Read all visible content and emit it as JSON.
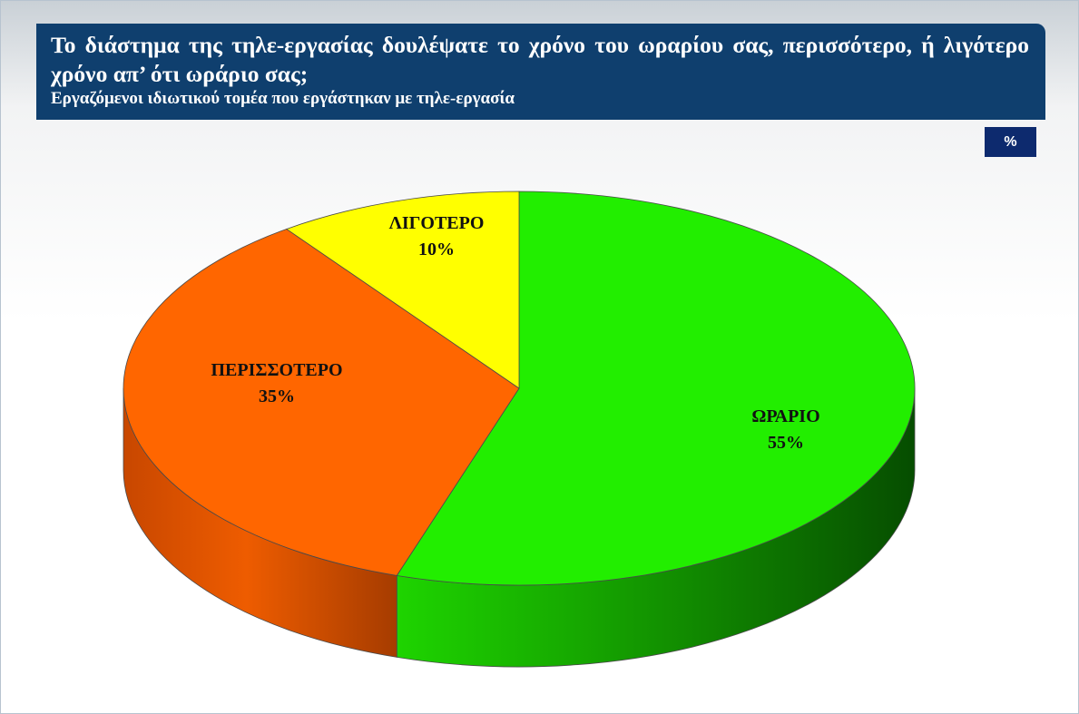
{
  "header": {
    "title": "Το διάστημα της τηλε-εργασίας δουλέψατε το χρόνο του ωραρίου σας, περισσότερο, ή λιγότερο χρόνο απ’ ότι ωράριο σας;",
    "subtitle": "Εργαζόμενοι ιδιωτικού τομέα που εργάστηκαν με τηλε-εργασία"
  },
  "unit_badge": "%",
  "chart_data": {
    "type": "pie",
    "style": "3d",
    "title": "Το διάστημα της τηλε-εργασίας δουλέψατε το χρόνο του ωραρίου σας, περισσότερο, ή λιγότερο χρόνο απ’ ότι ωράριο σας;",
    "subtitle": "Εργαζόμενοι ιδιωτικού τομέα που εργάστηκαν με τηλε-εργασία",
    "unit": "%",
    "slices": [
      {
        "label": "ΩΡΑΡΙΟ",
        "value": 55,
        "value_label": "55%",
        "color": "#22ee00",
        "side_color": "#0e8a00"
      },
      {
        "label": "ΠΕΡΙΣΣΟΤΕΡΟ",
        "value": 35,
        "value_label": "35%",
        "color": "#ff6600",
        "side_color": "#c24400"
      },
      {
        "label": "ΛΙΓΟΤΕΡΟ",
        "value": 10,
        "value_label": "10%",
        "color": "#ffff00",
        "side_color": "#b8b800"
      }
    ]
  }
}
